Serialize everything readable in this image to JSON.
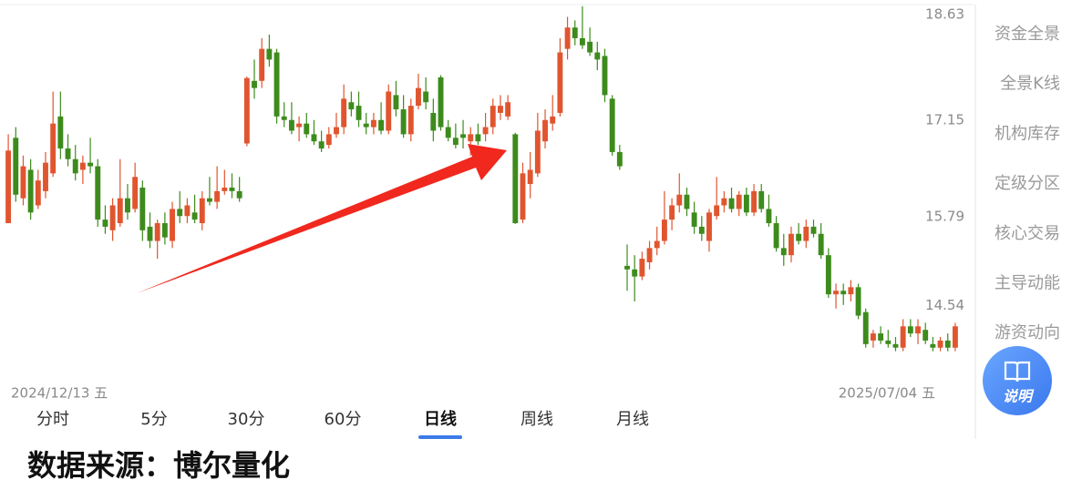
{
  "chart_data": {
    "type": "candlestick",
    "ohlc": [
      [
        15.7,
        16.95,
        15.7,
        16.72
      ],
      [
        16.9,
        17.05,
        16.0,
        16.1
      ],
      [
        16.05,
        16.65,
        15.95,
        16.5
      ],
      [
        16.45,
        16.6,
        15.75,
        15.85
      ],
      [
        15.95,
        16.45,
        15.9,
        16.3
      ],
      [
        16.15,
        16.7,
        16.05,
        16.55
      ],
      [
        16.4,
        17.55,
        16.35,
        17.1
      ],
      [
        17.2,
        17.55,
        16.6,
        16.75
      ],
      [
        16.75,
        16.95,
        16.5,
        16.6
      ],
      [
        16.6,
        16.8,
        16.3,
        16.4
      ],
      [
        16.45,
        16.65,
        16.25,
        16.55
      ],
      [
        16.55,
        16.9,
        16.4,
        16.5
      ],
      [
        16.5,
        16.6,
        15.65,
        15.75
      ],
      [
        15.75,
        15.95,
        15.55,
        15.65
      ],
      [
        15.6,
        16.05,
        15.45,
        15.95
      ],
      [
        15.7,
        16.6,
        15.65,
        16.05
      ],
      [
        16.05,
        16.25,
        15.75,
        15.85
      ],
      [
        15.9,
        16.55,
        15.85,
        16.35
      ],
      [
        16.2,
        16.3,
        15.45,
        15.6
      ],
      [
        15.65,
        15.85,
        15.35,
        15.45
      ],
      [
        15.45,
        15.75,
        15.2,
        15.7
      ],
      [
        15.7,
        15.85,
        15.4,
        15.5
      ],
      [
        15.45,
        16.0,
        15.35,
        15.9
      ],
      [
        15.9,
        16.15,
        15.7,
        15.8
      ],
      [
        15.8,
        16.05,
        15.7,
        15.95
      ],
      [
        15.85,
        16.1,
        15.7,
        15.75
      ],
      [
        15.7,
        16.15,
        15.6,
        16.05
      ],
      [
        16.05,
        16.35,
        15.95,
        16.0
      ],
      [
        16.0,
        16.5,
        15.9,
        16.15
      ],
      [
        16.15,
        16.45,
        16.1,
        16.2
      ],
      [
        16.2,
        16.4,
        16.05,
        16.15
      ],
      [
        16.15,
        16.35,
        16.0,
        16.05
      ],
      [
        16.82,
        17.76,
        16.78,
        17.74
      ],
      [
        17.7,
        18.0,
        17.45,
        17.6
      ],
      [
        17.7,
        18.3,
        17.6,
        18.15
      ],
      [
        18.15,
        18.35,
        17.9,
        18.0
      ],
      [
        18.1,
        18.15,
        17.1,
        17.2
      ],
      [
        17.2,
        17.4,
        17.05,
        17.15
      ],
      [
        17.15,
        17.4,
        16.95,
        17.0
      ],
      [
        17.05,
        17.2,
        16.85,
        17.1
      ],
      [
        17.1,
        17.25,
        16.9,
        16.95
      ],
      [
        16.95,
        17.15,
        16.8,
        16.85
      ],
      [
        16.85,
        17.0,
        16.7,
        16.75
      ],
      [
        16.8,
        17.05,
        16.75,
        16.95
      ],
      [
        16.95,
        17.25,
        16.9,
        17.05
      ],
      [
        17.05,
        17.65,
        16.95,
        17.45
      ],
      [
        17.4,
        17.55,
        17.2,
        17.3
      ],
      [
        17.35,
        17.55,
        17.05,
        17.15
      ],
      [
        17.1,
        17.25,
        16.95,
        17.05
      ],
      [
        17.05,
        17.25,
        16.95,
        17.15
      ],
      [
        17.15,
        17.4,
        16.95,
        17.0
      ],
      [
        17.0,
        17.65,
        16.95,
        17.55
      ],
      [
        17.5,
        17.7,
        17.2,
        17.3
      ],
      [
        17.3,
        17.5,
        16.9,
        16.95
      ],
      [
        16.95,
        17.45,
        16.85,
        17.35
      ],
      [
        17.35,
        17.8,
        17.3,
        17.6
      ],
      [
        17.55,
        17.75,
        17.3,
        17.4
      ],
      [
        17.25,
        17.45,
        16.85,
        17.0
      ],
      [
        17.75,
        17.78,
        17.0,
        17.05
      ],
      [
        17.05,
        17.15,
        16.85,
        16.9
      ],
      [
        16.9,
        17.1,
        16.75,
        16.8
      ],
      [
        16.95,
        17.15,
        16.75,
        16.9
      ],
      [
        16.85,
        17.05,
        16.65,
        16.95
      ],
      [
        16.95,
        17.1,
        16.8,
        16.85
      ],
      [
        16.95,
        17.25,
        16.85,
        17.05
      ],
      [
        17.05,
        17.45,
        16.95,
        17.35
      ],
      [
        17.25,
        17.5,
        17.15,
        17.35
      ],
      [
        17.2,
        17.5,
        17.15,
        17.4
      ],
      [
        16.95,
        16.97,
        15.69,
        15.7
      ],
      [
        15.75,
        16.55,
        15.7,
        16.4
      ],
      [
        16.25,
        16.7,
        16.05,
        16.45
      ],
      [
        16.4,
        17.25,
        16.35,
        17.0
      ],
      [
        16.85,
        17.3,
        16.75,
        17.15
      ],
      [
        17.1,
        17.5,
        17.0,
        17.2
      ],
      [
        17.25,
        18.3,
        17.2,
        18.1
      ],
      [
        18.15,
        18.6,
        18.0,
        18.45
      ],
      [
        18.45,
        18.55,
        18.2,
        18.3
      ],
      [
        18.3,
        18.75,
        18.15,
        18.2
      ],
      [
        18.25,
        18.45,
        18.05,
        18.1
      ],
      [
        18.1,
        18.25,
        17.85,
        18.0
      ],
      [
        18.05,
        18.15,
        17.4,
        17.5
      ],
      [
        17.45,
        17.5,
        16.65,
        16.7
      ],
      [
        16.7,
        16.8,
        16.45,
        16.5
      ],
      [
        15.1,
        15.4,
        14.75,
        15.05
      ],
      [
        15.05,
        15.25,
        14.6,
        14.95
      ],
      [
        14.95,
        15.3,
        14.9,
        15.2
      ],
      [
        15.15,
        15.45,
        15.05,
        15.35
      ],
      [
        15.35,
        15.65,
        15.25,
        15.45
      ],
      [
        15.45,
        16.15,
        15.4,
        15.75
      ],
      [
        15.75,
        16.05,
        15.6,
        15.95
      ],
      [
        15.95,
        16.4,
        15.85,
        16.1
      ],
      [
        16.1,
        16.2,
        15.8,
        15.9
      ],
      [
        15.85,
        16.0,
        15.55,
        15.65
      ],
      [
        15.65,
        15.8,
        15.45,
        15.55
      ],
      [
        15.45,
        15.9,
        15.3,
        15.85
      ],
      [
        15.8,
        16.35,
        15.75,
        15.95
      ],
      [
        15.95,
        16.15,
        15.85,
        16.05
      ],
      [
        16.05,
        16.2,
        15.85,
        15.9
      ],
      [
        15.9,
        16.15,
        15.8,
        16.1
      ],
      [
        16.1,
        16.2,
        15.8,
        15.85
      ],
      [
        15.85,
        16.25,
        15.8,
        16.15
      ],
      [
        16.15,
        16.25,
        15.85,
        15.9
      ],
      [
        15.9,
        16.1,
        15.65,
        15.7
      ],
      [
        15.7,
        15.8,
        15.3,
        15.35
      ],
      [
        15.35,
        15.55,
        15.1,
        15.25
      ],
      [
        15.25,
        15.65,
        15.15,
        15.55
      ],
      [
        15.55,
        15.7,
        15.4,
        15.45
      ],
      [
        15.45,
        15.75,
        15.35,
        15.65
      ],
      [
        15.65,
        15.75,
        15.5,
        15.55
      ],
      [
        15.55,
        15.7,
        15.2,
        15.25
      ],
      [
        15.25,
        15.35,
        14.65,
        14.7
      ],
      [
        14.7,
        14.85,
        14.5,
        14.75
      ],
      [
        14.75,
        14.85,
        14.55,
        14.7
      ],
      [
        14.7,
        14.9,
        14.6,
        14.8
      ],
      [
        14.8,
        14.85,
        14.35,
        14.4
      ],
      [
        14.45,
        14.5,
        13.95,
        14.0
      ],
      [
        14.05,
        14.2,
        13.95,
        14.15
      ],
      [
        14.15,
        14.25,
        14.0,
        14.05
      ],
      [
        14.05,
        14.2,
        13.95,
        14.0
      ],
      [
        14.0,
        14.1,
        13.9,
        13.95
      ],
      [
        13.95,
        14.35,
        13.9,
        14.25
      ],
      [
        14.25,
        14.35,
        14.1,
        14.15
      ],
      [
        14.15,
        14.35,
        14.0,
        14.25
      ],
      [
        14.2,
        14.3,
        14.0,
        14.05
      ],
      [
        14.0,
        14.1,
        13.9,
        13.95
      ],
      [
        13.95,
        14.1,
        13.9,
        14.05
      ],
      [
        14.05,
        14.15,
        13.9,
        13.95
      ],
      [
        13.95,
        14.3,
        13.9,
        14.25
      ]
    ],
    "ylim": [
      13.46,
      18.76
    ],
    "yticks": [
      14.54,
      15.79,
      17.15,
      18.63
    ],
    "up_color": "#e0552f",
    "down_color": "#3d8b1c",
    "x_start_label": "2024/12/13 五",
    "x_end_label": "2025/07/04 五"
  },
  "tabs": [
    "分时",
    "5分",
    "30分",
    "60分",
    "日线",
    "周线",
    "月线"
  ],
  "selected_tab": 4,
  "sidebar": [
    "资金全景",
    "全景K线",
    "机构库存",
    "定级分区",
    "核心交易",
    "主导动能",
    "游资动向"
  ],
  "help_button": "说明",
  "source": "数据来源：博尔量化"
}
